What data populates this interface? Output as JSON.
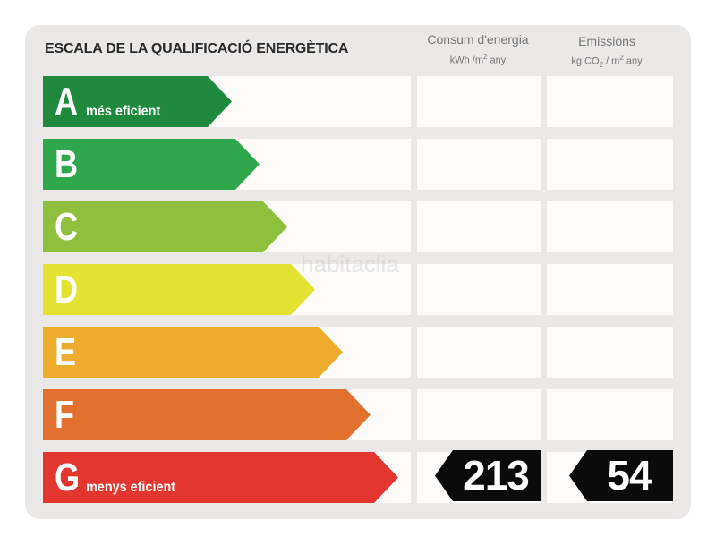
{
  "title": "ESCALA DE LA QUALIFICACIÓ ENERGÈTICA",
  "columns": {
    "consumption": {
      "label": "Consum d'energia",
      "unit_pre": "kWh /m",
      "unit_sup": "2",
      "unit_post": " any"
    },
    "emissions": {
      "label": "Emissions",
      "unit_pre": "kg CO",
      "unit_sub": "2",
      "unit_mid": " / m",
      "unit_sup": "2",
      "unit_post": " any"
    }
  },
  "classes": [
    {
      "letter": "A",
      "label": "més eficient",
      "color": "#1f8a3e"
    },
    {
      "letter": "B",
      "label": "",
      "color": "#2ea84a"
    },
    {
      "letter": "C",
      "label": "",
      "color": "#8fc03d"
    },
    {
      "letter": "D",
      "label": "",
      "color": "#e4e332"
    },
    {
      "letter": "E",
      "label": "",
      "color": "#eeac2d"
    },
    {
      "letter": "F",
      "label": "",
      "color": "#e3712e"
    },
    {
      "letter": "G",
      "label": "menys eficient",
      "color": "#e3362f"
    }
  ],
  "rating": {
    "class": "G",
    "consumption": "213",
    "emissions": "54"
  },
  "watermark": "habitaclia"
}
